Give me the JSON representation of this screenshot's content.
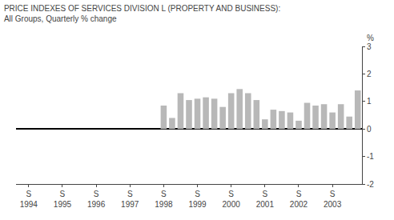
{
  "chart_data": {
    "type": "bar",
    "title": "PRICE INDEXES OF SERVICES DIVISION L (PROPERTY AND BUSINESS):",
    "subtitle": "All Groups, Quarterly % change",
    "ylabel": "%",
    "color": "#b8b8b8",
    "categories": [
      "S\n1994",
      null,
      null,
      null,
      "S\n1995",
      null,
      null,
      null,
      "S\n1996",
      null,
      null,
      null,
      "S\n1997",
      null,
      null,
      null,
      "S\n1998",
      null,
      null,
      null,
      "S\n1999",
      null,
      null,
      null,
      "S\n2000",
      null,
      null,
      null,
      "S\n2001",
      null,
      null,
      null,
      "S\n2002",
      null,
      null,
      null,
      "S\n2003",
      null,
      null,
      null
    ],
    "values": [
      0.0,
      0.0,
      0.0,
      0.0,
      0.0,
      0.0,
      0.0,
      0.0,
      0.0,
      0.0,
      0.0,
      0.0,
      0.0,
      0.0,
      0.0,
      0.0,
      0.85,
      0.4,
      1.3,
      1.05,
      1.1,
      1.15,
      1.1,
      0.8,
      1.3,
      1.45,
      1.3,
      1.05,
      0.35,
      0.7,
      0.65,
      0.6,
      0.3,
      0.95,
      0.85,
      0.9,
      0.6,
      0.9,
      0.45,
      1.4
    ],
    "ylim": [
      -2,
      3
    ],
    "yticks": [
      -2,
      -1,
      0,
      1,
      2,
      3
    ],
    "grid": false
  }
}
